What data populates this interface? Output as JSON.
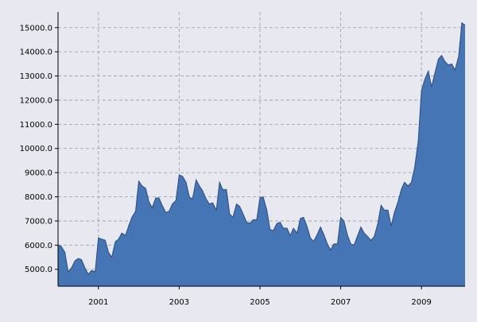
{
  "chart_data": {
    "type": "area",
    "title": "",
    "xlabel": "",
    "ylabel": "",
    "xlim": [
      2000.0,
      2010.08
    ],
    "ylim": [
      4300,
      15650
    ],
    "grid": true,
    "x_ticks": [
      {
        "value": 2001,
        "label": "2001"
      },
      {
        "value": 2003,
        "label": "2003"
      },
      {
        "value": 2005,
        "label": "2005"
      },
      {
        "value": 2007,
        "label": "2007"
      },
      {
        "value": 2009,
        "label": "2009"
      }
    ],
    "y_ticks": [
      {
        "value": 5000,
        "label": "5000.0"
      },
      {
        "value": 6000,
        "label": "6000.0"
      },
      {
        "value": 7000,
        "label": "7000.0"
      },
      {
        "value": 8000,
        "label": "8000.0"
      },
      {
        "value": 9000,
        "label": "9000.0"
      },
      {
        "value": 10000,
        "label": "10000.0"
      },
      {
        "value": 11000,
        "label": "11000.0"
      },
      {
        "value": 12000,
        "label": "12000.0"
      },
      {
        "value": 13000,
        "label": "13000.0"
      },
      {
        "value": 14000,
        "label": "14000.0"
      },
      {
        "value": 15000,
        "label": "15000.0"
      }
    ],
    "series": [
      {
        "fill_color": "#4575b4",
        "line_color": "#2b4a7a",
        "x": [
          2000.0,
          2000.08,
          2000.17,
          2000.25,
          2000.33,
          2000.42,
          2000.5,
          2000.58,
          2000.67,
          2000.75,
          2000.83,
          2000.92,
          2001.0,
          2001.08,
          2001.17,
          2001.25,
          2001.33,
          2001.42,
          2001.5,
          2001.58,
          2001.67,
          2001.75,
          2001.83,
          2001.92,
          2002.0,
          2002.08,
          2002.17,
          2002.25,
          2002.33,
          2002.42,
          2002.5,
          2002.58,
          2002.67,
          2002.75,
          2002.83,
          2002.92,
          2003.0,
          2003.08,
          2003.17,
          2003.25,
          2003.33,
          2003.42,
          2003.5,
          2003.58,
          2003.67,
          2003.75,
          2003.83,
          2003.92,
          2004.0,
          2004.08,
          2004.17,
          2004.25,
          2004.33,
          2004.42,
          2004.5,
          2004.58,
          2004.67,
          2004.75,
          2004.83,
          2004.92,
          2005.0,
          2005.08,
          2005.17,
          2005.25,
          2005.33,
          2005.42,
          2005.5,
          2005.58,
          2005.67,
          2005.75,
          2005.83,
          2005.92,
          2006.0,
          2006.08,
          2006.17,
          2006.25,
          2006.33,
          2006.42,
          2006.5,
          2006.58,
          2006.67,
          2006.75,
          2006.83,
          2006.92,
          2007.0,
          2007.08,
          2007.17,
          2007.25,
          2007.33,
          2007.42,
          2007.5,
          2007.58,
          2007.67,
          2007.75,
          2007.83,
          2007.92,
          2008.0,
          2008.08,
          2008.17,
          2008.25,
          2008.33,
          2008.42,
          2008.5,
          2008.58,
          2008.67,
          2008.75,
          2008.83,
          2008.92,
          2009.0,
          2009.08,
          2009.17,
          2009.25,
          2009.33,
          2009.42,
          2009.5,
          2009.58,
          2009.67,
          2009.75,
          2009.83,
          2009.92,
          2010.0,
          2010.08
        ],
        "y": [
          6000,
          5950,
          5700,
          4900,
          5050,
          5350,
          5450,
          5400,
          5050,
          4800,
          4950,
          4900,
          6300,
          6250,
          6200,
          5700,
          5500,
          6150,
          6250,
          6500,
          6400,
          6800,
          7150,
          7400,
          8650,
          8450,
          8350,
          7800,
          7550,
          7950,
          7950,
          7650,
          7350,
          7400,
          7700,
          7850,
          8900,
          8850,
          8600,
          8000,
          7900,
          8700,
          8450,
          8250,
          7900,
          7700,
          7750,
          7450,
          8600,
          8300,
          8300,
          7300,
          7150,
          7700,
          7600,
          7300,
          6950,
          6900,
          7050,
          7050,
          7950,
          8000,
          7450,
          6650,
          6600,
          6900,
          6950,
          6700,
          6700,
          6400,
          6700,
          6500,
          7100,
          7150,
          6750,
          6300,
          6150,
          6450,
          6750,
          6450,
          6050,
          5800,
          6050,
          6050,
          7150,
          7000,
          6400,
          6050,
          6000,
          6400,
          6750,
          6500,
          6350,
          6200,
          6350,
          6900,
          7650,
          7450,
          7450,
          6800,
          7350,
          7800,
          8300,
          8600,
          8450,
          8600,
          9200,
          10300,
          12400,
          12850,
          13200,
          12550,
          13100,
          13700,
          13850,
          13600,
          13450,
          13500,
          13250,
          13800,
          15200,
          15100
        ]
      }
    ]
  }
}
